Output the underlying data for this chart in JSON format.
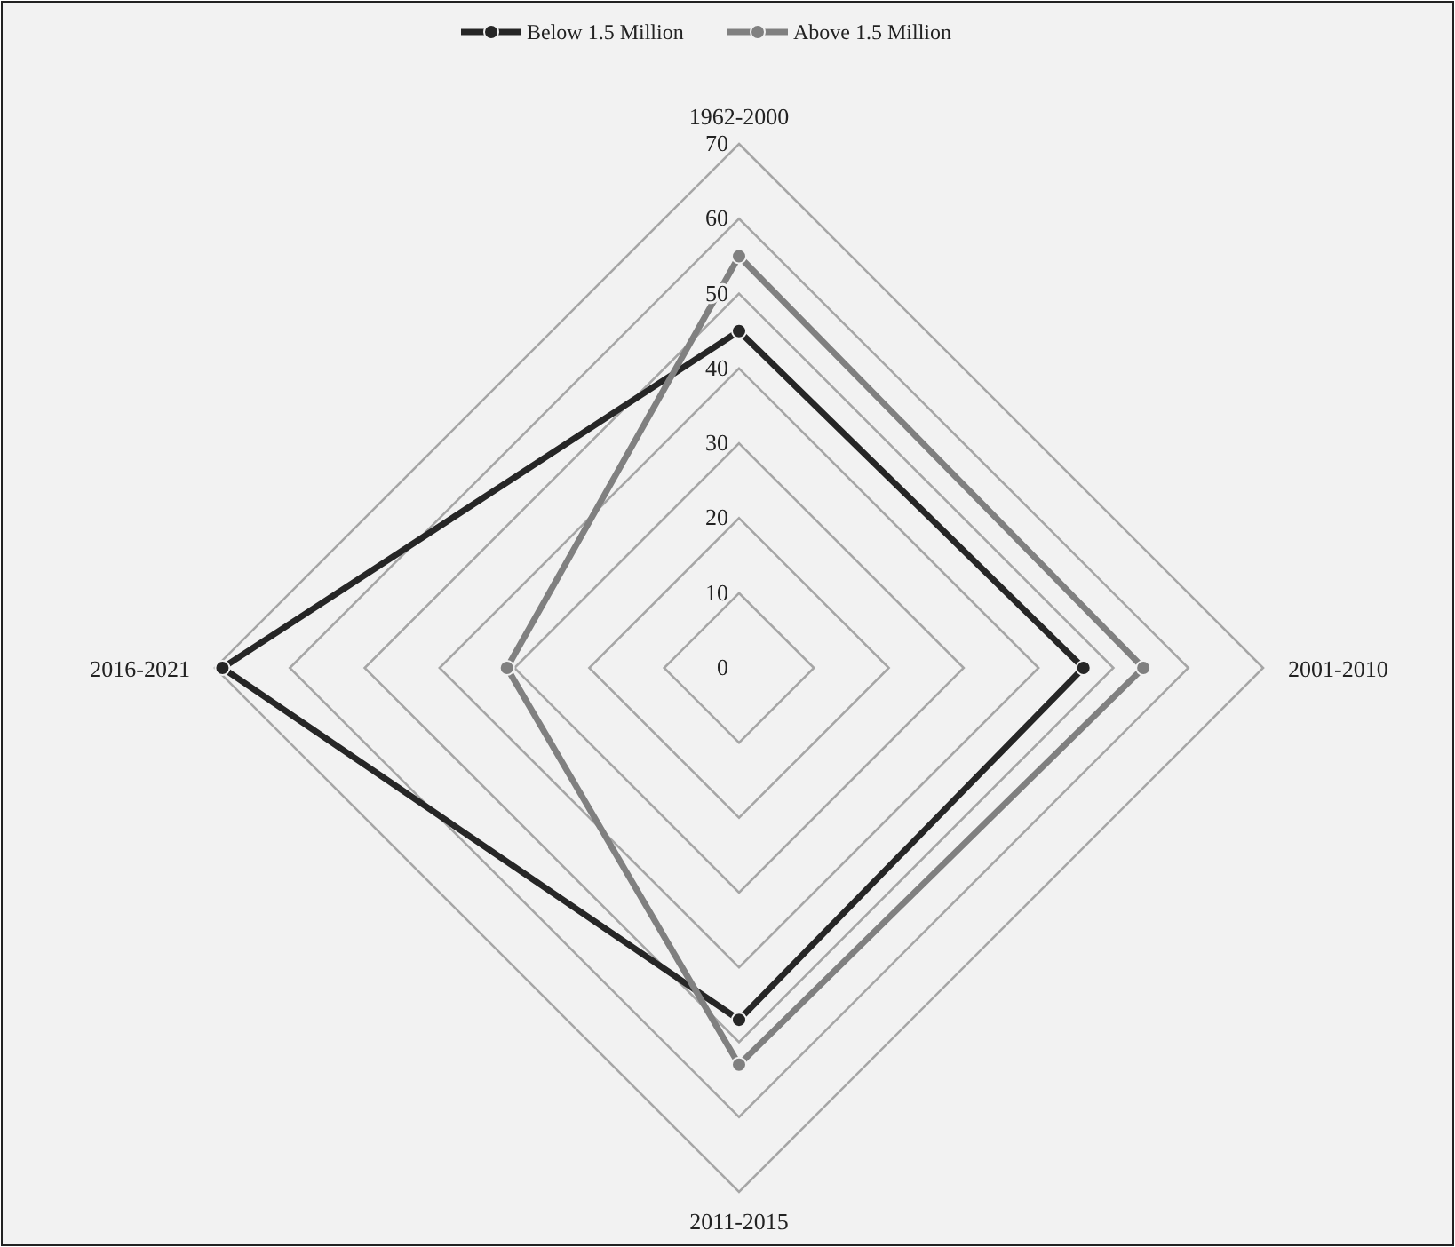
{
  "chart_data": {
    "type": "radar",
    "categories": [
      "1962-2000",
      "2001-2010",
      "2011-2015",
      "2016-2021"
    ],
    "series": [
      {
        "name": "Below 1.5 Million",
        "color": "#262626",
        "values": [
          45,
          46,
          47,
          69
        ]
      },
      {
        "name": "Above 1.5 Million",
        "color": "#808080",
        "values": [
          55,
          54,
          53,
          31
        ]
      }
    ],
    "ylim": [
      0,
      70
    ],
    "yticks": [
      0,
      10,
      20,
      30,
      40,
      50,
      60,
      70
    ],
    "legend": "top",
    "marker": "circle"
  }
}
